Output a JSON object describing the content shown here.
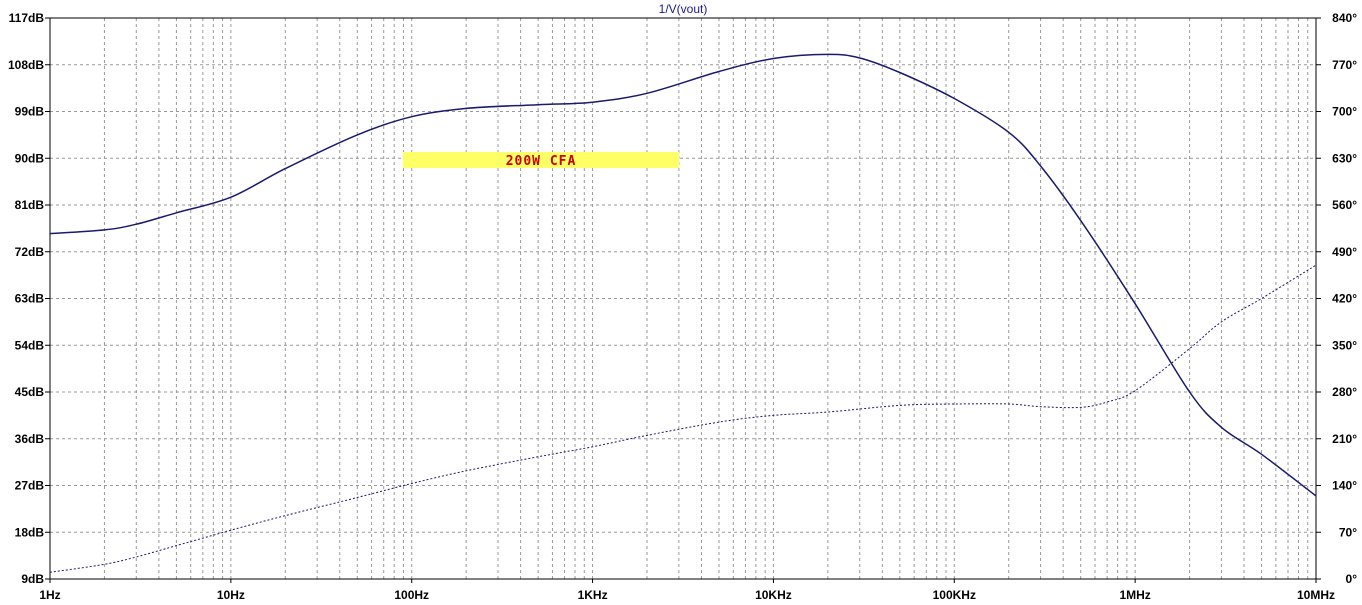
{
  "chart_data": {
    "type": "line",
    "title": "1/V(vout)",
    "annotation": "200W CFA",
    "x_scale": "log",
    "xlim": [
      1,
      10000000
    ],
    "x_ticks": [
      {
        "value": 1,
        "label": "1Hz"
      },
      {
        "value": 10,
        "label": "10Hz"
      },
      {
        "value": 100,
        "label": "100Hz"
      },
      {
        "value": 1000,
        "label": "1KHz"
      },
      {
        "value": 10000,
        "label": "10KHz"
      },
      {
        "value": 100000,
        "label": "100KHz"
      },
      {
        "value": 1000000,
        "label": "1MHz"
      },
      {
        "value": 10000000,
        "label": "10MHz"
      }
    ],
    "ylim_left": [
      9,
      117
    ],
    "y_left_ticks": [
      {
        "value": 117,
        "label": "117dB"
      },
      {
        "value": 108,
        "label": "108dB"
      },
      {
        "value": 99,
        "label": "99dB"
      },
      {
        "value": 90,
        "label": "90dB"
      },
      {
        "value": 81,
        "label": "81dB"
      },
      {
        "value": 72,
        "label": "72dB"
      },
      {
        "value": 63,
        "label": "63dB"
      },
      {
        "value": 54,
        "label": "54dB"
      },
      {
        "value": 45,
        "label": "45dB"
      },
      {
        "value": 36,
        "label": "36dB"
      },
      {
        "value": 27,
        "label": "27dB"
      },
      {
        "value": 18,
        "label": "18dB"
      },
      {
        "value": 9,
        "label": "9dB"
      }
    ],
    "ylim_right": [
      0,
      840
    ],
    "y_right_ticks": [
      {
        "value": 840,
        "label": "840°"
      },
      {
        "value": 770,
        "label": "770°"
      },
      {
        "value": 700,
        "label": "700°"
      },
      {
        "value": 630,
        "label": "630°"
      },
      {
        "value": 560,
        "label": "560°"
      },
      {
        "value": 490,
        "label": "490°"
      },
      {
        "value": 420,
        "label": "420°"
      },
      {
        "value": 350,
        "label": "350°"
      },
      {
        "value": 280,
        "label": "280°"
      },
      {
        "value": 210,
        "label": "210°"
      },
      {
        "value": 140,
        "label": "140°"
      },
      {
        "value": 70,
        "label": "70°"
      },
      {
        "value": 0,
        "label": "0°"
      }
    ],
    "grid": true,
    "colors": {
      "trace": "#1a1a6e",
      "annotation_bg": "#ffff66",
      "annotation_text": "#cc0000",
      "grid": "#999999"
    },
    "series": [
      {
        "axis": "left",
        "style": "solid",
        "x": [
          1,
          2,
          3,
          5,
          10,
          20,
          50,
          100,
          200,
          500,
          1000,
          2000,
          5000,
          10000,
          20000,
          30000,
          50000,
          100000,
          200000,
          300000,
          500000,
          1000000,
          2000000,
          3000000,
          5000000,
          10000000
        ],
        "y": [
          75.5,
          76.2,
          77.3,
          79.5,
          82.5,
          88,
          94.5,
          98,
          99.6,
          100.3,
          100.8,
          102.5,
          106.7,
          109.2,
          110,
          109.3,
          106.5,
          101.5,
          95,
          88.5,
          78,
          62,
          45,
          38.2,
          33,
          25
        ]
      },
      {
        "axis": "right",
        "style": "dotted",
        "x": [
          1,
          2,
          3,
          5,
          10,
          20,
          50,
          100,
          200,
          500,
          1000,
          2000,
          5000,
          10000,
          20000,
          50000,
          100000,
          200000,
          300000,
          500000,
          700000,
          1000000,
          2000000,
          3000000,
          5000000,
          10000000
        ],
        "y": [
          10,
          22,
          33,
          50,
          73,
          95,
          122,
          143,
          162,
          183,
          198,
          215,
          235,
          245,
          250,
          260,
          262,
          262,
          258,
          257,
          265,
          282,
          345,
          385,
          420,
          470
        ]
      }
    ]
  }
}
